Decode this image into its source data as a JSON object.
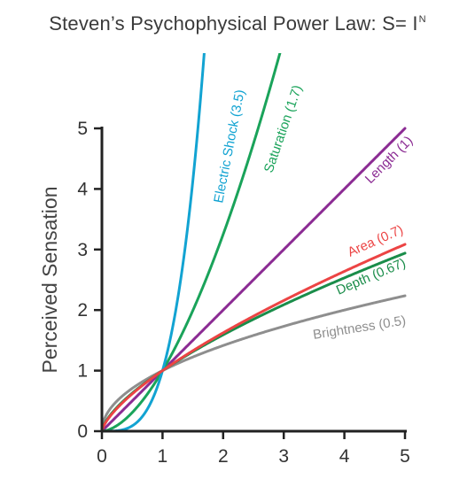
{
  "chart_data": {
    "type": "line",
    "title_main": "Steven’s Psychophysical Power Law: S= I",
    "title_exponent": "N",
    "xlabel": "",
    "ylabel": "Perceived Sensation",
    "xlim": [
      0,
      5
    ],
    "ylim": [
      0,
      5
    ],
    "x_ticks": [
      "0",
      "1",
      "2",
      "3",
      "4",
      "5"
    ],
    "y_ticks": [
      "0",
      "1",
      "2",
      "3",
      "4",
      "5"
    ],
    "grid": false,
    "legend": "none",
    "series": [
      {
        "name": "Electric Shock (3.5)",
        "exponent": 3.5,
        "color": "#12a3d2",
        "label_style": "along-line"
      },
      {
        "name": "Saturation (1.7)",
        "exponent": 1.7,
        "color": "#1aa35a",
        "label_style": "along-line"
      },
      {
        "name": "Length (1)",
        "exponent": 1.0,
        "color": "#8b2b93",
        "label_style": "along-line"
      },
      {
        "name": "Area (0.7)",
        "exponent": 0.7,
        "color": "#ec4444",
        "label_style": "along-line"
      },
      {
        "name": "Depth (0.67)",
        "exponent": 0.67,
        "color": "#1a8d4a",
        "label_style": "along-line"
      },
      {
        "name": "Brightness (0.5)",
        "exponent": 0.5,
        "color": "#8e8e8e",
        "label_style": "along-line"
      }
    ]
  }
}
